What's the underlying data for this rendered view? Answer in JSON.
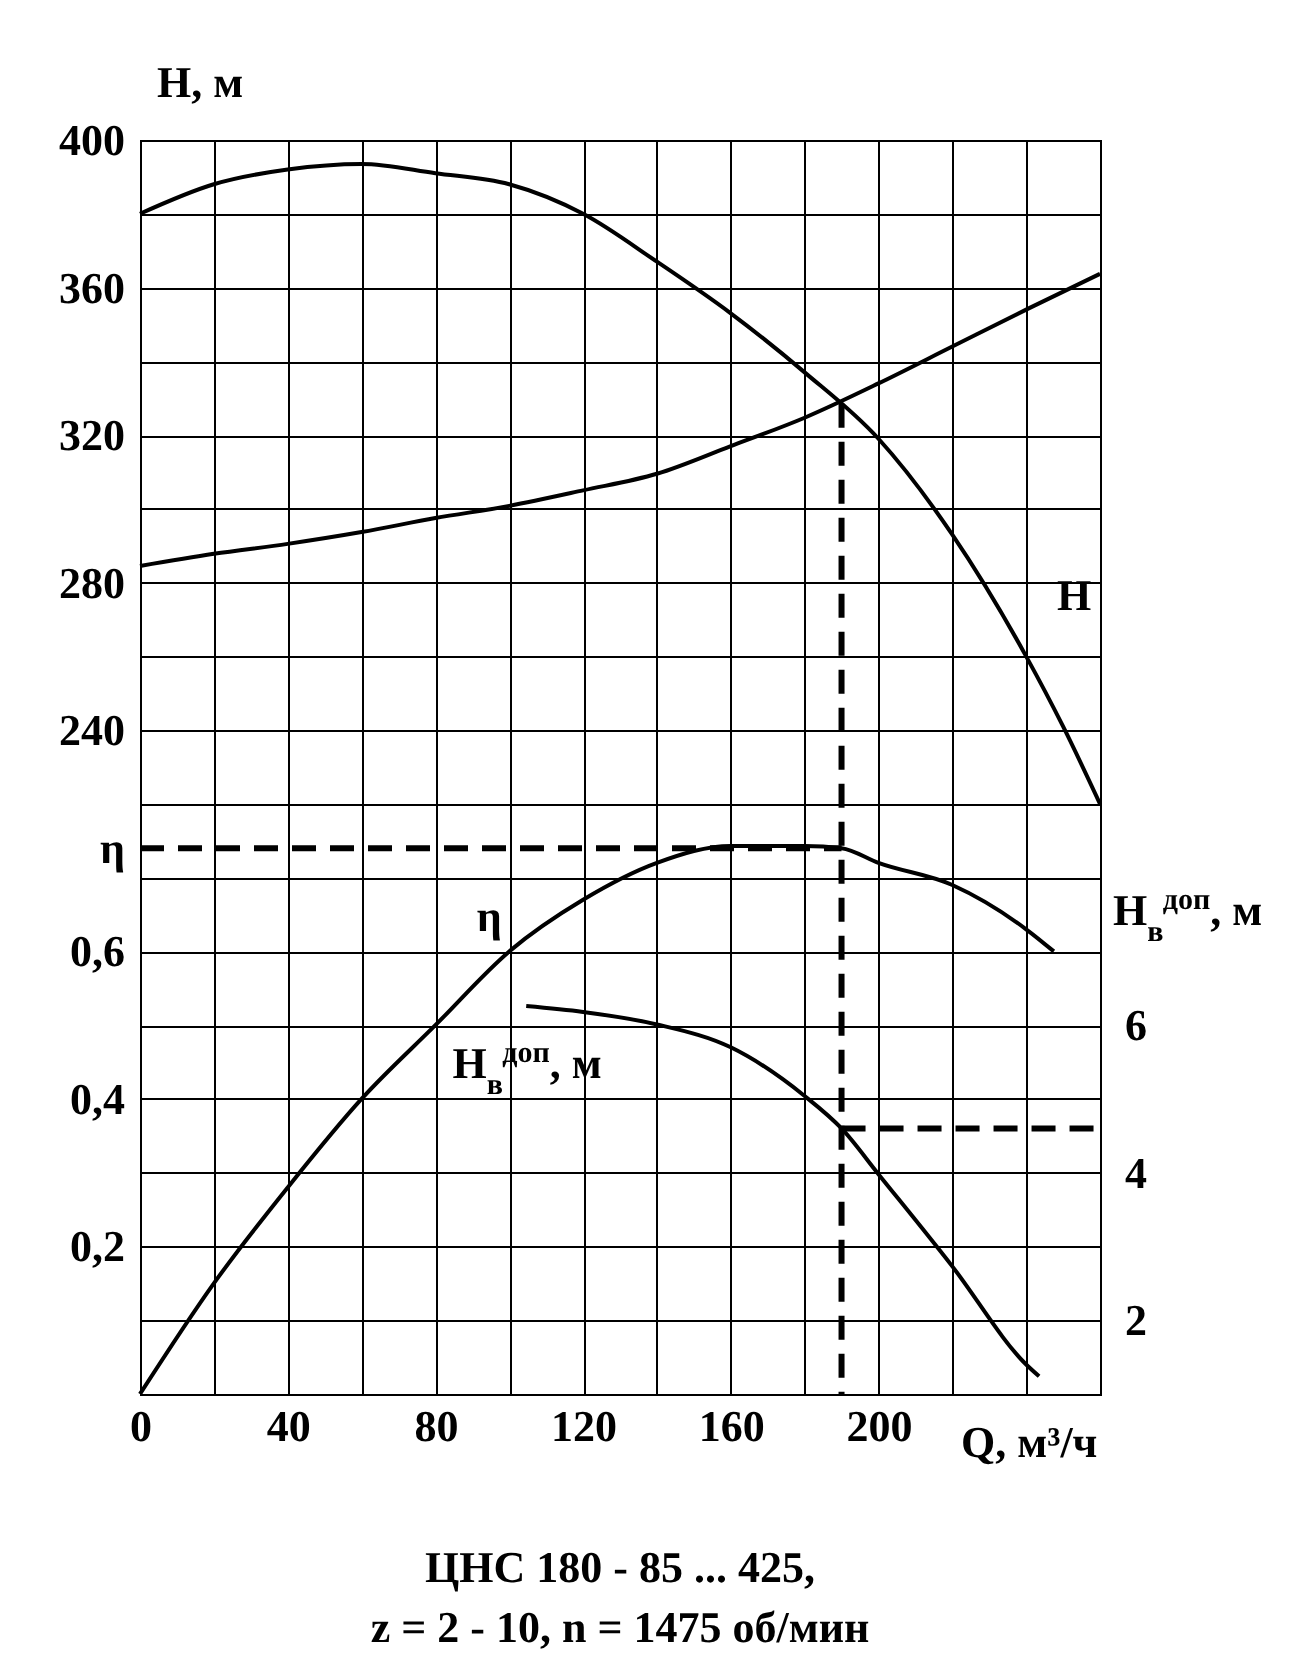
{
  "chart_data": {
    "type": "line",
    "title": "ЦНС 180 - 85 ... 425,",
    "subtitle": "z = 2 - 10,   n = 1475 об/мин",
    "xlabel": "Q, м³/ч",
    "ylabel": "H, м",
    "y2label": "H$_{в}$$^{доп}$, м",
    "xlim": [
      0,
      260
    ],
    "xticks": [
      0,
      {
        "value": 20,
        "label": null
      },
      40,
      {
        "value": 60,
        "label": null
      },
      80,
      {
        "value": 100,
        "label": null
      },
      120,
      {
        "value": 140,
        "label": null
      },
      160,
      {
        "value": 180,
        "label": null
      },
      200,
      {
        "value": 220,
        "label": null
      },
      {
        "value": 240,
        "label": null
      },
      {
        "value": 260,
        "label": null
      }
    ],
    "ylim": [
      60,
      400
    ],
    "yticks": [
      {
        "value": 60,
        "label": null
      },
      {
        "value": 80,
        "label": null
      },
      {
        "value": 100,
        "label": null
      },
      {
        "value": 120,
        "label": null
      },
      {
        "value": 140,
        "label": null
      },
      {
        "value": 160,
        "label": null
      },
      {
        "value": 180,
        "label": null
      },
      {
        "value": 200,
        "label": null
      },
      {
        "value": 220,
        "label": null
      },
      240,
      {
        "value": 260,
        "label": null
      },
      280,
      {
        "value": 300,
        "label": null
      },
      320,
      {
        "value": 340,
        "label": null
      },
      360,
      {
        "value": 380,
        "label": null
      },
      400
    ],
    "y2lim": [
      1,
      18
    ],
    "y2ticks": [
      2,
      4,
      6
    ],
    "y3lim": [
      0,
      1.7
    ],
    "y3ticks": [
      {
        "value": 0.2,
        "label": "0,2"
      },
      {
        "value": 0.4,
        "label": "0,4"
      },
      {
        "value": 0.6,
        "label": "0,6"
      },
      {
        "value": 0.74,
        "label": "η"
      }
    ],
    "grid": true,
    "line_style": "solid",
    "marker": "none",
    "series": [
      {
        "name": "H",
        "color": "#000000",
        "axis": "y",
        "x": [
          0,
          20,
          40,
          60,
          80,
          100,
          120,
          140,
          160,
          180,
          200,
          220,
          240,
          250,
          260
        ],
        "values": [
          380,
          388,
          392,
          393.5,
          391,
          388,
          380,
          367,
          353,
          337,
          319,
          293,
          260,
          241,
          220
        ]
      },
      {
        "color": "#000000",
        "axis": "y",
        "x": [
          0,
          20,
          40,
          60,
          80,
          100,
          120,
          140,
          160,
          180,
          200,
          220,
          240,
          260
        ],
        "values": [
          284.5,
          287.8,
          290.5,
          293.7,
          297.5,
          300.8,
          305,
          309.5,
          317,
          324.7,
          334,
          344,
          354,
          363.7
        ]
      },
      {
        "color": "#000000",
        "axis": "y",
        "line_style": "dashed",
        "x": [
          190,
          190
        ],
        "values": [
          328.5,
          60
        ]
      },
      {
        "name": "η",
        "color": "#000000",
        "axis": "y3",
        "x": [
          0,
          20,
          40,
          60,
          80,
          100,
          120,
          140,
          160,
          180,
          190,
          200,
          220,
          240,
          247.5
        ],
        "values": [
          0,
          0.15,
          0.28,
          0.4,
          0.5,
          0.6,
          0.67,
          0.72,
          0.743,
          0.743,
          0.74,
          0.72,
          0.69,
          0.63,
          0.6
        ]
      },
      {
        "color": "#000000",
        "axis": "y3",
        "line_style": "dashed",
        "x": [
          0,
          190
        ],
        "values": [
          0.74,
          0.74
        ]
      },
      {
        "name": "H$_{в}$$^{доп}$, м",
        "color": "#000000",
        "axis": "y2",
        "x": [
          104.6,
          120,
          140,
          160,
          180,
          190,
          200,
          220,
          240,
          243.5
        ],
        "values": [
          6.26,
          6.18,
          6.01,
          5.7,
          5.04,
          4.6,
          3.98,
          2.73,
          1.4,
          1.24
        ]
      },
      {
        "color": "#000000",
        "axis": "y2",
        "line_style": "dashed",
        "x": [
          190,
          260
        ],
        "values": [
          4.6,
          4.6
        ]
      }
    ]
  }
}
